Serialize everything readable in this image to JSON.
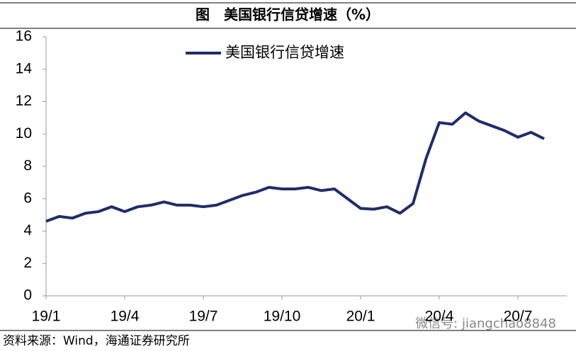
{
  "chart_data": {
    "type": "line",
    "title": "图　美国银行信贷增速（%）",
    "categories": [
      "19/1",
      null,
      null,
      null,
      null,
      null,
      "19/4",
      null,
      null,
      null,
      null,
      null,
      "19/7",
      null,
      null,
      null,
      null,
      null,
      "19/10",
      null,
      null,
      null,
      null,
      null,
      "20/1",
      null,
      null,
      null,
      null,
      null,
      "20/4",
      null,
      null,
      null,
      null,
      null,
      "20/7",
      null,
      null
    ],
    "series": [
      {
        "name": "美国银行信贷增速",
        "color": "#1f2d6b",
        "values": [
          4.6,
          4.9,
          4.8,
          5.1,
          5.2,
          5.5,
          5.2,
          5.5,
          5.6,
          5.8,
          5.6,
          5.6,
          5.5,
          5.6,
          5.9,
          6.2,
          6.4,
          6.7,
          6.6,
          6.6,
          6.7,
          6.5,
          6.6,
          6.0,
          5.4,
          5.35,
          5.5,
          5.1,
          5.7,
          8.5,
          10.7,
          10.6,
          11.3,
          10.8,
          10.5,
          10.2,
          9.8,
          10.1,
          9.7
        ]
      }
    ],
    "ylim": [
      0,
      16
    ],
    "yticks": [
      0,
      2,
      4,
      6,
      8,
      10,
      12,
      14,
      16
    ],
    "grid": false,
    "legend": "top",
    "source": "资料来源：Wind，海通证券研究所",
    "watermark": "微信号: jiangchao8848"
  }
}
